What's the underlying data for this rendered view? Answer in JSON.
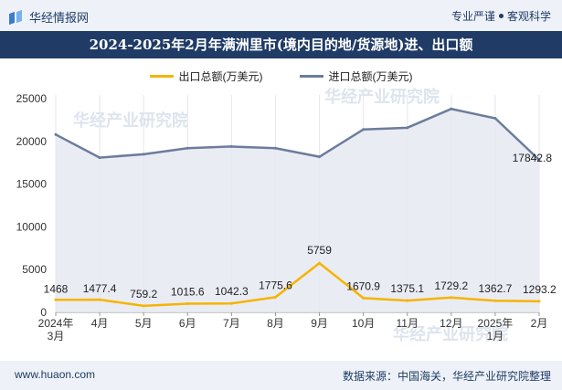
{
  "header": {
    "brand": "华经情报网",
    "tagline_a": "专业严谨",
    "tagline_b": "客观科学"
  },
  "watermark": "华经产业研究院",
  "footer": {
    "site": "www.huaon.com",
    "source": "数据来源：中国海关，华经产业研究院整理"
  },
  "colors": {
    "header_bg": "#1f3b66",
    "export": "#f5b400",
    "import": "#6c7c9c",
    "import_fill": "#e6e9f2"
  },
  "chart_data": {
    "type": "line",
    "title": "2024-2025年2月年满洲里市(境内目的地/货源地)进、出口额",
    "categories": [
      "2024年3月",
      "4月",
      "5月",
      "6月",
      "7月",
      "8月",
      "9月",
      "10月",
      "11月",
      "12月",
      "2025年1月",
      "2月"
    ],
    "ylim": [
      0,
      25000
    ],
    "yticks": [
      0,
      5000,
      10000,
      15000,
      20000,
      25000
    ],
    "grid": "vertical",
    "legend": "top-center",
    "series": [
      {
        "name": "出口总额(万美元)",
        "color": "#f5b400",
        "values": [
          1468,
          1477.4,
          759.2,
          1015.6,
          1042.3,
          1775.6,
          5759,
          1670.9,
          1375.1,
          1729.2,
          1362.7,
          1293.2
        ],
        "labels": [
          "1468",
          "1477.4",
          "759.2",
          "1015.6",
          "1042.3",
          "1775.6",
          "5759",
          "1670.9",
          "1375.1",
          "1729.2",
          "1362.7",
          "1293.2"
        ]
      },
      {
        "name": "进口总额(万美元)",
        "color": "#6c7c9c",
        "values": [
          20800,
          18100,
          18500,
          19200,
          19400,
          19200,
          18200,
          21400,
          21600,
          23800,
          22700,
          17842.8
        ],
        "labels": [
          "",
          "",
          "",
          "",
          "",
          "",
          "",
          "",
          "",
          "",
          "",
          "17842.8"
        ]
      }
    ]
  }
}
